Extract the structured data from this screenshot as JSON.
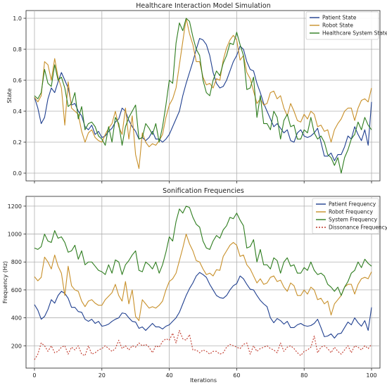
{
  "chart_data": [
    {
      "type": "line",
      "title": "Healthcare Interaction Model Simulation",
      "xlabel": "",
      "ylabel": "State",
      "xlim": [
        -2.5,
        102.5
      ],
      "ylim": [
        -0.05,
        1.05
      ],
      "xticks": [
        0,
        20,
        40,
        60,
        80,
        100
      ],
      "yticks": [
        "0.0",
        "0.2",
        "0.4",
        "0.6",
        "0.8",
        "1.0"
      ],
      "show_xtick_labels": false,
      "grid": true,
      "legend_position": "top-right",
      "series": [
        {
          "name": "Patient State",
          "color": "#1f3f8f",
          "values": [
            0.49,
            0.42,
            0.32,
            0.36,
            0.48,
            0.55,
            0.52,
            0.59,
            0.65,
            0.6,
            0.55,
            0.44,
            0.45,
            0.4,
            0.37,
            0.3,
            0.28,
            0.31,
            0.25,
            0.27,
            0.23,
            0.24,
            0.27,
            0.29,
            0.33,
            0.35,
            0.42,
            0.4,
            0.34,
            0.3,
            0.27,
            0.22,
            0.23,
            0.21,
            0.23,
            0.27,
            0.22,
            0.22,
            0.2,
            0.22,
            0.25,
            0.3,
            0.35,
            0.4,
            0.5,
            0.58,
            0.65,
            0.72,
            0.8,
            0.87,
            0.86,
            0.83,
            0.76,
            0.65,
            0.58,
            0.55,
            0.56,
            0.6,
            0.66,
            0.72,
            0.76,
            0.82,
            0.8,
            0.72,
            0.67,
            0.66,
            0.58,
            0.52,
            0.45,
            0.4,
            0.35,
            0.3,
            0.32,
            0.29,
            0.26,
            0.28,
            0.21,
            0.2,
            0.26,
            0.28,
            0.24,
            0.23,
            0.24,
            0.26,
            0.29,
            0.2,
            0.11,
            0.11,
            0.13,
            0.08,
            0.12,
            0.12,
            0.17,
            0.24,
            0.22,
            0.3,
            0.25,
            0.21,
            0.28,
            0.18,
            0.46
          ]
        },
        {
          "name": "Robot State",
          "color": "#c8902a",
          "values": [
            0.49,
            0.46,
            0.5,
            0.72,
            0.7,
            0.6,
            0.74,
            0.62,
            0.55,
            0.31,
            0.59,
            0.42,
            0.4,
            0.38,
            0.27,
            0.2,
            0.26,
            0.28,
            0.23,
            0.21,
            0.2,
            0.25,
            0.29,
            0.32,
            0.4,
            0.3,
            0.25,
            0.42,
            0.22,
            0.37,
            0.12,
            0.03,
            0.26,
            0.2,
            0.17,
            0.19,
            0.18,
            0.21,
            0.25,
            0.36,
            0.44,
            0.48,
            0.55,
            0.7,
            0.85,
            1.0,
            0.9,
            0.83,
            0.72,
            0.72,
            0.62,
            0.57,
            0.58,
            0.55,
            0.61,
            0.6,
            0.73,
            0.81,
            0.86,
            0.89,
            0.86,
            0.73,
            0.76,
            0.65,
            0.61,
            0.53,
            0.45,
            0.48,
            0.44,
            0.45,
            0.52,
            0.53,
            0.48,
            0.5,
            0.42,
            0.37,
            0.45,
            0.4,
            0.34,
            0.33,
            0.38,
            0.35,
            0.4,
            0.38,
            0.3,
            0.31,
            0.27,
            0.28,
            0.2,
            0.28,
            0.32,
            0.35,
            0.4,
            0.42,
            0.42,
            0.34,
            0.42,
            0.47,
            0.48,
            0.46,
            0.55
          ]
        },
        {
          "name": "Healthcare System State",
          "color": "#2e7d1f",
          "values": [
            0.5,
            0.48,
            0.52,
            0.67,
            0.58,
            0.56,
            0.7,
            0.6,
            0.62,
            0.55,
            0.43,
            0.45,
            0.52,
            0.35,
            0.43,
            0.28,
            0.32,
            0.33,
            0.3,
            0.24,
            0.22,
            0.18,
            0.3,
            0.2,
            0.36,
            0.32,
            0.18,
            0.3,
            0.36,
            0.4,
            0.44,
            0.22,
            0.23,
            0.32,
            0.29,
            0.25,
            0.32,
            0.2,
            0.3,
            0.44,
            0.6,
            0.58,
            0.84,
            0.97,
            0.92,
            1.0,
            0.98,
            0.88,
            0.8,
            0.76,
            0.6,
            0.52,
            0.5,
            0.6,
            0.66,
            0.63,
            0.71,
            0.76,
            0.84,
            0.83,
            0.91,
            0.83,
            0.76,
            0.54,
            0.55,
            0.62,
            0.36,
            0.5,
            0.32,
            0.32,
            0.28,
            0.4,
            0.36,
            0.22,
            0.34,
            0.38,
            0.3,
            0.31,
            0.22,
            0.22,
            0.28,
            0.26,
            0.36,
            0.26,
            0.22,
            0.24,
            0.2,
            0.12,
            0.1,
            0.05,
            0.1,
            0.0,
            0.1,
            0.15,
            0.22,
            0.25,
            0.33,
            0.28,
            0.36,
            0.31,
            0.28
          ]
        }
      ]
    },
    {
      "type": "line",
      "title": "Sonification Frequencies",
      "xlabel": "Iterations",
      "ylabel": "Frequency (Hz)",
      "xlim": [
        -2.5,
        102.5
      ],
      "ylim": [
        40,
        1270
      ],
      "xticks": [
        0,
        20,
        40,
        60,
        80,
        100
      ],
      "yticks": [
        "200",
        "400",
        "600",
        "800",
        "1000",
        "1200"
      ],
      "show_xtick_labels": true,
      "grid": true,
      "legend_position": "top-right",
      "series": [
        {
          "name": "Patient Frequency",
          "color": "#1f3f8f",
          "dash": "",
          "values": [
            495,
            455,
            390,
            410,
            460,
            530,
            505,
            560,
            590,
            575,
            540,
            475,
            475,
            445,
            440,
            390,
            375,
            390,
            360,
            375,
            340,
            345,
            355,
            375,
            390,
            400,
            435,
            430,
            400,
            375,
            370,
            325,
            335,
            310,
            335,
            360,
            335,
            335,
            320,
            340,
            350,
            375,
            400,
            440,
            500,
            560,
            610,
            650,
            700,
            725,
            710,
            690,
            640,
            600,
            560,
            545,
            540,
            560,
            600,
            630,
            645,
            700,
            680,
            640,
            605,
            600,
            560,
            525,
            500,
            480,
            400,
            365,
            395,
            380,
            355,
            375,
            330,
            330,
            350,
            360,
            345,
            340,
            345,
            360,
            390,
            330,
            265,
            270,
            285,
            255,
            285,
            290,
            330,
            370,
            350,
            400,
            365,
            340,
            380,
            310,
            475
          ]
        },
        {
          "name": "Robot Frequency",
          "color": "#c8902a",
          "dash": "",
          "values": [
            695,
            665,
            690,
            835,
            800,
            750,
            850,
            770,
            720,
            560,
            770,
            630,
            600,
            590,
            520,
            480,
            520,
            530,
            505,
            490,
            490,
            530,
            555,
            580,
            640,
            560,
            520,
            660,
            500,
            600,
            410,
            380,
            530,
            500,
            470,
            480,
            470,
            490,
            520,
            600,
            660,
            680,
            720,
            810,
            900,
            1000,
            930,
            880,
            810,
            800,
            750,
            710,
            720,
            700,
            745,
            740,
            840,
            880,
            920,
            940,
            920,
            840,
            850,
            780,
            750,
            700,
            650,
            680,
            640,
            650,
            690,
            700,
            660,
            670,
            620,
            590,
            650,
            630,
            560,
            560,
            600,
            570,
            620,
            600,
            530,
            540,
            500,
            520,
            420,
            500,
            530,
            560,
            620,
            640,
            640,
            570,
            640,
            680,
            690,
            680,
            730
          ]
        },
        {
          "name": "System Frequency",
          "color": "#2e7d1f",
          "dash": "",
          "values": [
            900,
            890,
            910,
            1000,
            950,
            940,
            1025,
            970,
            980,
            940,
            870,
            880,
            920,
            820,
            880,
            780,
            800,
            800,
            770,
            740,
            730,
            710,
            780,
            720,
            815,
            800,
            710,
            780,
            810,
            850,
            880,
            740,
            730,
            800,
            780,
            750,
            800,
            720,
            780,
            870,
            980,
            950,
            1090,
            1180,
            1150,
            1200,
            1190,
            1120,
            1070,
            1050,
            950,
            900,
            890,
            950,
            990,
            970,
            1030,
            1060,
            1120,
            1110,
            1150,
            1100,
            1060,
            900,
            910,
            960,
            800,
            890,
            780,
            780,
            750,
            830,
            810,
            720,
            800,
            830,
            770,
            780,
            720,
            720,
            760,
            740,
            800,
            740,
            710,
            720,
            700,
            640,
            620,
            590,
            620,
            560,
            620,
            660,
            720,
            740,
            800,
            760,
            820,
            790,
            770
          ]
        },
        {
          "name": "Dissonance Frequency",
          "color": "#c0392b",
          "dash": "2,2",
          "values": [
            100,
            140,
            220,
            200,
            160,
            200,
            150,
            160,
            190,
            200,
            140,
            190,
            170,
            200,
            140,
            130,
            200,
            140,
            150,
            170,
            180,
            200,
            180,
            160,
            180,
            240,
            180,
            200,
            170,
            200,
            190,
            220,
            200,
            210,
            190,
            150,
            200,
            190,
            230,
            250,
            240,
            290,
            220,
            310,
            250,
            240,
            280,
            170,
            170,
            150,
            170,
            160,
            140,
            160,
            160,
            140,
            150,
            190,
            210,
            200,
            190,
            180,
            210,
            220,
            140,
            200,
            160,
            180,
            190,
            200,
            180,
            170,
            150,
            220,
            160,
            190,
            200,
            180,
            150,
            130,
            160,
            170,
            190,
            270,
            150,
            190,
            200,
            180,
            150,
            190,
            160,
            140,
            170,
            200,
            150,
            200,
            190,
            170,
            200,
            180,
            210
          ]
        }
      ]
    }
  ]
}
